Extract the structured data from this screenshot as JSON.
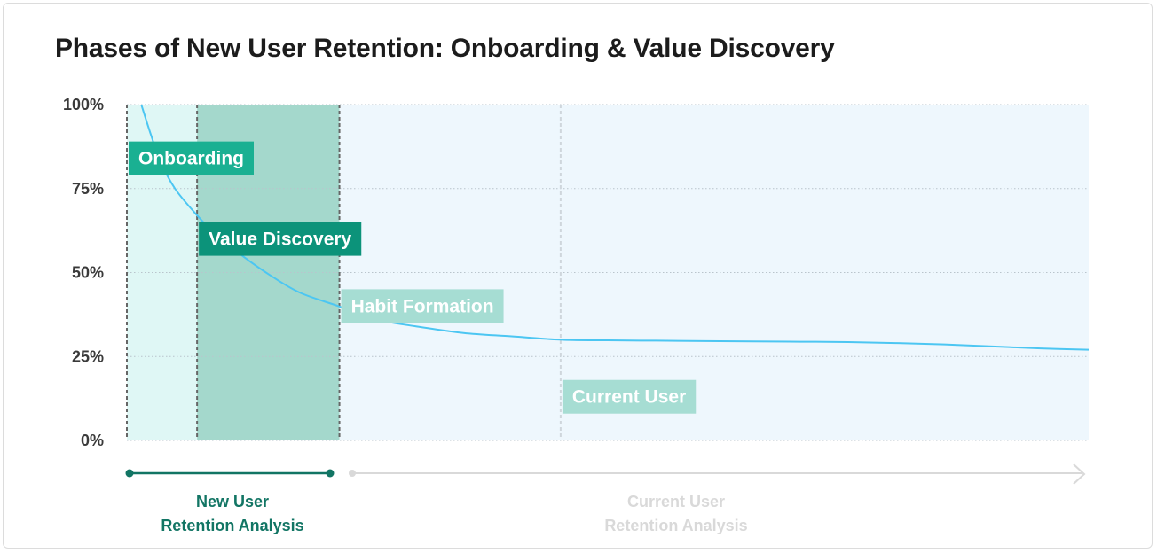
{
  "title": "Phases of New User Retention: Onboarding & Value Discovery",
  "colors": {
    "curve": "#4cc6f2",
    "onboarding_band": "#dff7f5",
    "value_band": "#a4d8cc",
    "rest_band": "#eef7fd",
    "onboarding_tag": "#1ab092",
    "value_tag": "#0c937a",
    "light_tag": "#a6ddd3",
    "new_user_timeline": "#127564",
    "current_user_timeline": "#d9d9d9"
  },
  "chart_data": {
    "type": "line",
    "y_ticks": [
      "100%",
      "75%",
      "50%",
      "25%",
      "0%"
    ],
    "ylim": [
      0,
      100
    ],
    "x_range": [
      0,
      100
    ],
    "grid": true,
    "series": [
      {
        "x": [
          1.5,
          2.5,
          3.5,
          5,
          7,
          9,
          12,
          15,
          18,
          22,
          26,
          30,
          35,
          40,
          45,
          50,
          55,
          60,
          65,
          70,
          75,
          80,
          85,
          90,
          95,
          100
        ],
        "values": [
          100,
          91,
          83,
          75,
          68,
          62,
          55,
          49,
          44,
          40,
          36,
          34,
          32,
          31,
          30,
          29.8,
          29.7,
          29.6,
          29.5,
          29.4,
          29.3,
          29.0,
          28.6,
          28.0,
          27.4,
          27.0
        ]
      }
    ],
    "phases": [
      {
        "label": "Onboarding",
        "start": 0,
        "end": 7.3
      },
      {
        "label": "Value Discovery",
        "start": 7.3,
        "end": 22.1
      },
      {
        "label": "Habit Formation",
        "start": 22.1,
        "end": 100
      },
      {
        "label": "Current User",
        "start": 45.1,
        "end": 100
      }
    ],
    "tag_levels": [
      84,
      60,
      40,
      13
    ]
  },
  "timeline": {
    "new_user": [
      "New User",
      "Retention Analysis"
    ],
    "current_user": [
      "Current User",
      "Retention Analysis"
    ]
  }
}
